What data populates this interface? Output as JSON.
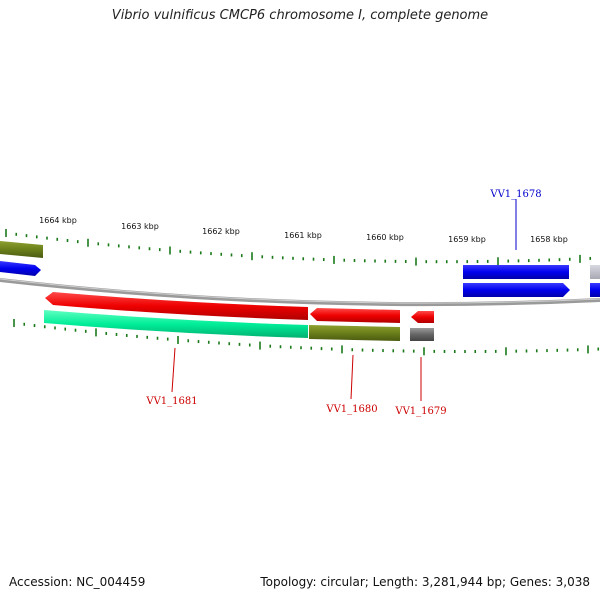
{
  "title": "Vibrio vulnificus CMCP6 chromosome I, complete genome",
  "footer": {
    "accession": "Accession: NC_004459",
    "summary": "Topology: circular; Length: 3,281,944 bp; Genes: 3,038"
  },
  "scale_labels": [
    "1664 kbp",
    "1663 kbp",
    "1662 kbp",
    "1661 kbp",
    "1660 kbp",
    "1659 kbp",
    "1658 kbp"
  ],
  "gene_labels": [
    {
      "text": "VV1_1678",
      "color": "#0000cc"
    },
    {
      "text": "VV1_1681",
      "color": "#cc0000"
    },
    {
      "text": "VV1_1680",
      "color": "#cc0000"
    },
    {
      "text": "VV1_1679",
      "color": "#cc0000"
    }
  ],
  "colors": {
    "backbone": "#8a8a8a",
    "tick": "#1a7a1a",
    "forward_cds": "#0000ee",
    "reverse_cds": "#ee0000",
    "cyan_feature": "#00ee99",
    "olive_feature": "#6b7f1a",
    "gray_feature": "#666666"
  }
}
